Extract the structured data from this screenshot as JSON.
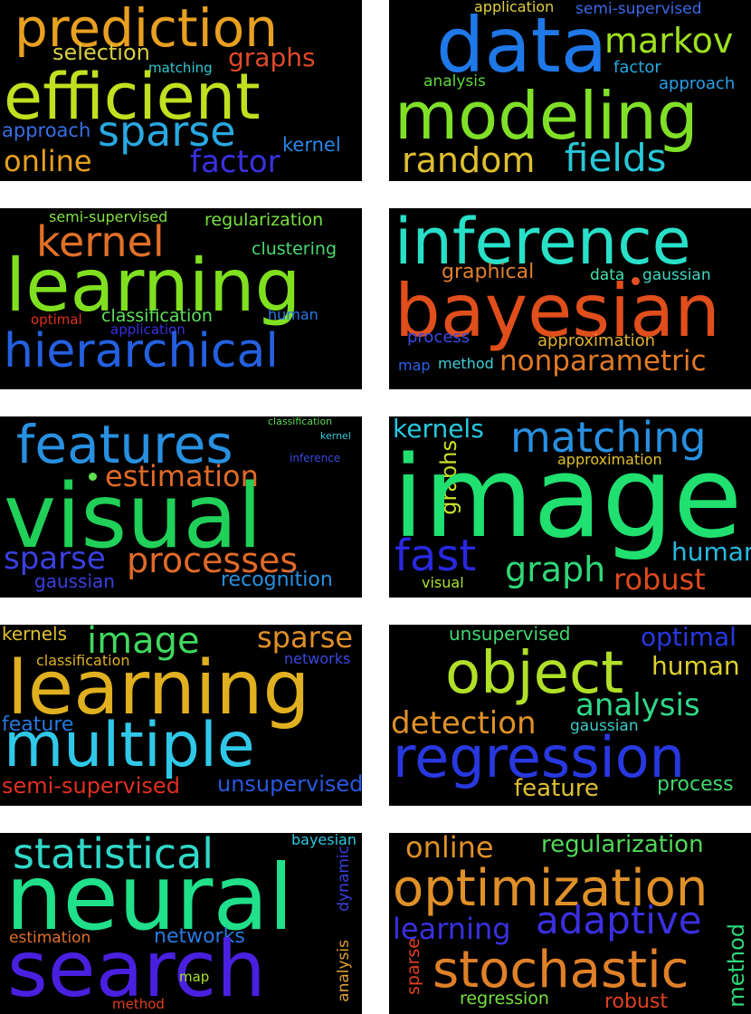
{
  "clouds": [
    {
      "words": [
        "prediction",
        "selection",
        "graphs",
        "matching",
        "efficient",
        "approach",
        "sparse",
        "kernel",
        "online",
        "factor"
      ]
    },
    {
      "words": [
        "application",
        "semi-supervised",
        "data",
        "markov",
        "factor",
        "analysis",
        "approach",
        "modeling",
        "random",
        "fields"
      ]
    },
    {
      "words": [
        "semi-supervised",
        "regularization",
        "kernel",
        "clustering",
        "learning",
        "optimal",
        "classification",
        "human",
        "application",
        "hierarchical"
      ]
    },
    {
      "words": [
        "inference",
        "graphical",
        "data",
        "gaussian",
        "bayesian",
        "process",
        "approximation",
        "map",
        "method",
        "nonparametric"
      ]
    },
    {
      "words": [
        "classification",
        "kernel",
        "features",
        "inference",
        "estimation",
        "visual",
        "sparse",
        "processes",
        "gaussian",
        "recognition"
      ]
    },
    {
      "words": [
        "kernels",
        "matching",
        "graphs",
        "approximation",
        "image",
        "fast",
        "human",
        "graph",
        "robust",
        "visual"
      ]
    },
    {
      "words": [
        "kernels",
        "image",
        "sparse",
        "classification",
        "networks",
        "learning",
        "feature",
        "multiple",
        "semi-supervised",
        "unsupervised"
      ]
    },
    {
      "words": [
        "unsupervised",
        "optimal",
        "object",
        "human",
        "analysis",
        "detection",
        "gaussian",
        "regression",
        "feature",
        "process"
      ]
    },
    {
      "words": [
        "statistical",
        "bayesian",
        "neural",
        "dynamic",
        "estimation",
        "networks",
        "search",
        "analysis",
        "map",
        "method"
      ]
    },
    {
      "words": [
        "online",
        "regularization",
        "optimization",
        "learning",
        "adaptive",
        "sparse",
        "method",
        "stochastic",
        "regression",
        "robust"
      ]
    }
  ]
}
